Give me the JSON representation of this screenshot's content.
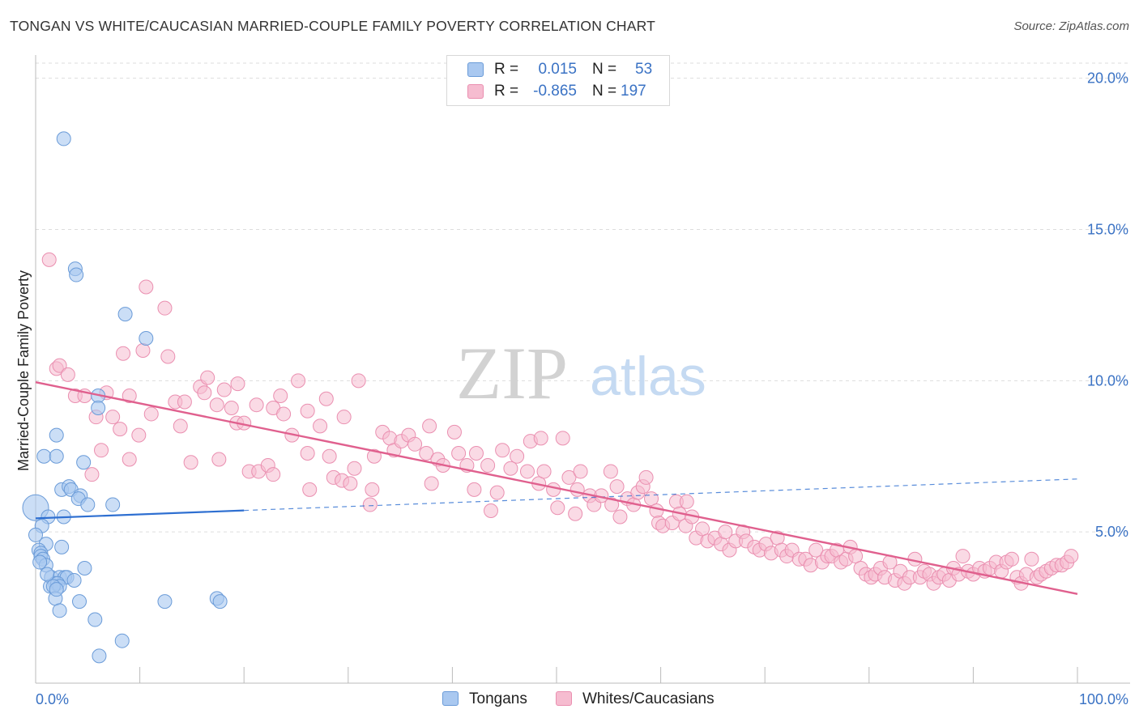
{
  "title": "TONGAN VS WHITE/CAUCASIAN MARRIED-COUPLE FAMILY POVERTY CORRELATION CHART",
  "source": "Source: ZipAtlas.com",
  "watermark": {
    "zip": "ZIP",
    "atlas": "atlas"
  },
  "legend": {
    "rows": [
      {
        "r_label": "R =",
        "r_value": "0.015",
        "n_label": "N =",
        "n_value": "53"
      },
      {
        "r_label": "R =",
        "r_value": "-0.865",
        "n_label": "N =",
        "n_value": "197"
      }
    ]
  },
  "bottom_legend": {
    "tongans": "Tongans",
    "whites": "Whites/Caucasians"
  },
  "colors": {
    "blue_fill": "#a9c8f0",
    "blue_stroke": "#6a9bd8",
    "blue_line": "#2e6fd1",
    "pink_fill": "#f6bcd0",
    "pink_stroke": "#ea8fb0",
    "pink_line": "#e0608e",
    "tick": "#3a72c4",
    "grid": "#dddddd"
  },
  "chart_data": {
    "type": "scatter",
    "title": "TONGAN VS WHITE/CAUCASIAN MARRIED-COUPLE FAMILY POVERTY CORRELATION CHART",
    "xlabel": "",
    "ylabel": "Married-Couple Family Poverty",
    "xlim": [
      0,
      100
    ],
    "ylim": [
      0,
      20.5
    ],
    "x_tick_labels": [
      "0.0%",
      "100.0%"
    ],
    "y_ticks": [
      5,
      10,
      15,
      20
    ],
    "y_tick_labels": [
      "5.0%",
      "10.0%",
      "15.0%",
      "20.0%"
    ],
    "series": [
      {
        "name": "Tongans",
        "r": 0.015,
        "n": 53,
        "trend": {
          "x0": 0,
          "y0": 5.45,
          "x1": 100,
          "y1": 6.75,
          "solid_until": 20
        },
        "points": [
          [
            2.7,
            18.0
          ],
          [
            3.8,
            13.7
          ],
          [
            3.9,
            13.5
          ],
          [
            8.6,
            12.2
          ],
          [
            10.6,
            11.4
          ],
          [
            6.0,
            9.5
          ],
          [
            6.0,
            9.1
          ],
          [
            2.0,
            8.2
          ],
          [
            0.8,
            7.5
          ],
          [
            2.0,
            7.5
          ],
          [
            4.6,
            7.3
          ],
          [
            2.5,
            6.4
          ],
          [
            3.2,
            6.5
          ],
          [
            3.4,
            6.4
          ],
          [
            4.3,
            6.2
          ],
          [
            4.1,
            6.1
          ],
          [
            5.0,
            5.9
          ],
          [
            7.4,
            5.9
          ],
          [
            0.0,
            5.8
          ],
          [
            1.2,
            5.5
          ],
          [
            2.7,
            5.5
          ],
          [
            0.6,
            5.2
          ],
          [
            0.0,
            4.9
          ],
          [
            1.0,
            4.6
          ],
          [
            2.5,
            4.5
          ],
          [
            0.3,
            4.4
          ],
          [
            0.5,
            4.3
          ],
          [
            0.5,
            4.2
          ],
          [
            0.7,
            4.1
          ],
          [
            1.0,
            3.9
          ],
          [
            4.7,
            3.8
          ],
          [
            1.5,
            3.5
          ],
          [
            2.3,
            3.5
          ],
          [
            2.8,
            3.5
          ],
          [
            3.0,
            3.5
          ],
          [
            1.9,
            3.3
          ],
          [
            1.4,
            3.2
          ],
          [
            2.1,
            3.3
          ],
          [
            2.3,
            3.2
          ],
          [
            1.7,
            3.2
          ],
          [
            1.9,
            2.8
          ],
          [
            4.2,
            2.7
          ],
          [
            12.4,
            2.7
          ],
          [
            17.4,
            2.8
          ],
          [
            17.7,
            2.7
          ],
          [
            2.3,
            2.4
          ],
          [
            5.7,
            2.1
          ],
          [
            8.3,
            1.4
          ],
          [
            6.1,
            0.9
          ],
          [
            3.7,
            3.4
          ],
          [
            1.1,
            3.6
          ],
          [
            0.4,
            4.0
          ],
          [
            2.0,
            3.1
          ]
        ]
      },
      {
        "name": "Whites/Caucasians",
        "r": -0.865,
        "n": 197,
        "trend": {
          "x0": 0,
          "y0": 9.95,
          "x1": 100,
          "y1": 2.95
        },
        "points": [
          [
            1.3,
            14.0
          ],
          [
            10.6,
            13.1
          ],
          [
            12.4,
            12.4
          ],
          [
            8.4,
            10.9
          ],
          [
            10.3,
            11.0
          ],
          [
            12.7,
            10.8
          ],
          [
            2.0,
            10.4
          ],
          [
            2.3,
            10.5
          ],
          [
            3.1,
            10.2
          ],
          [
            3.8,
            9.5
          ],
          [
            4.7,
            9.5
          ],
          [
            6.8,
            9.6
          ],
          [
            9.0,
            9.5
          ],
          [
            11.1,
            8.9
          ],
          [
            13.4,
            9.3
          ],
          [
            14.3,
            9.3
          ],
          [
            15.8,
            9.8
          ],
          [
            16.5,
            10.1
          ],
          [
            16.2,
            9.6
          ],
          [
            17.4,
            9.2
          ],
          [
            18.1,
            9.7
          ],
          [
            19.4,
            9.9
          ],
          [
            18.8,
            9.1
          ],
          [
            13.9,
            8.5
          ],
          [
            7.4,
            8.8
          ],
          [
            5.8,
            8.8
          ],
          [
            8.1,
            8.4
          ],
          [
            9.9,
            8.2
          ],
          [
            6.3,
            7.7
          ],
          [
            9.0,
            7.4
          ],
          [
            5.4,
            6.9
          ],
          [
            14.9,
            7.3
          ],
          [
            17.6,
            7.4
          ],
          [
            19.3,
            8.6
          ],
          [
            20.0,
            8.6
          ],
          [
            21.2,
            9.2
          ],
          [
            22.8,
            9.1
          ],
          [
            23.5,
            9.5
          ],
          [
            23.8,
            8.9
          ],
          [
            25.2,
            10.0
          ],
          [
            24.6,
            8.2
          ],
          [
            26.1,
            9.0
          ],
          [
            27.3,
            8.5
          ],
          [
            27.9,
            9.4
          ],
          [
            29.6,
            8.8
          ],
          [
            31.0,
            10.0
          ],
          [
            20.5,
            7.0
          ],
          [
            21.4,
            7.0
          ],
          [
            22.3,
            7.2
          ],
          [
            22.8,
            6.9
          ],
          [
            26.3,
            6.4
          ],
          [
            26.1,
            7.6
          ],
          [
            28.2,
            7.5
          ],
          [
            28.6,
            6.8
          ],
          [
            29.4,
            6.7
          ],
          [
            30.2,
            6.6
          ],
          [
            30.6,
            7.1
          ],
          [
            32.1,
            5.9
          ],
          [
            32.3,
            6.4
          ],
          [
            32.5,
            7.5
          ],
          [
            33.3,
            8.3
          ],
          [
            34.0,
            8.1
          ],
          [
            34.4,
            7.7
          ],
          [
            35.1,
            8.0
          ],
          [
            35.8,
            8.2
          ],
          [
            36.4,
            7.9
          ],
          [
            37.5,
            7.6
          ],
          [
            38.6,
            7.4
          ],
          [
            39.1,
            7.2
          ],
          [
            38.0,
            6.6
          ],
          [
            37.8,
            8.5
          ],
          [
            40.2,
            8.3
          ],
          [
            40.6,
            7.6
          ],
          [
            41.4,
            7.2
          ],
          [
            42.3,
            7.6
          ],
          [
            42.1,
            6.4
          ],
          [
            43.4,
            7.2
          ],
          [
            44.3,
            6.3
          ],
          [
            43.7,
            5.7
          ],
          [
            44.8,
            7.7
          ],
          [
            45.6,
            7.1
          ],
          [
            46.2,
            7.5
          ],
          [
            47.2,
            7.0
          ],
          [
            47.5,
            8.0
          ],
          [
            48.3,
            6.6
          ],
          [
            48.8,
            7.0
          ],
          [
            48.5,
            8.1
          ],
          [
            49.7,
            6.4
          ],
          [
            50.1,
            5.8
          ],
          [
            50.6,
            8.1
          ],
          [
            51.2,
            6.8
          ],
          [
            52.0,
            6.4
          ],
          [
            52.3,
            7.0
          ],
          [
            51.8,
            5.6
          ],
          [
            53.2,
            6.2
          ],
          [
            53.6,
            5.9
          ],
          [
            54.3,
            6.2
          ],
          [
            55.2,
            7.0
          ],
          [
            55.8,
            6.5
          ],
          [
            55.3,
            5.9
          ],
          [
            56.1,
            5.5
          ],
          [
            56.8,
            6.1
          ],
          [
            57.4,
            5.9
          ],
          [
            57.8,
            6.3
          ],
          [
            58.3,
            6.5
          ],
          [
            58.6,
            6.8
          ],
          [
            59.1,
            6.1
          ],
          [
            59.6,
            5.7
          ],
          [
            59.8,
            5.3
          ],
          [
            60.2,
            5.2
          ],
          [
            61.1,
            5.3
          ],
          [
            61.5,
            6.0
          ],
          [
            61.8,
            5.6
          ],
          [
            62.5,
            6.0
          ],
          [
            62.4,
            5.2
          ],
          [
            63.0,
            5.5
          ],
          [
            63.4,
            4.8
          ],
          [
            64.0,
            5.1
          ],
          [
            64.5,
            4.7
          ],
          [
            65.2,
            4.8
          ],
          [
            65.8,
            4.6
          ],
          [
            66.2,
            5.0
          ],
          [
            66.6,
            4.4
          ],
          [
            67.2,
            4.7
          ],
          [
            67.9,
            5.0
          ],
          [
            68.2,
            4.7
          ],
          [
            69.0,
            4.5
          ],
          [
            69.5,
            4.4
          ],
          [
            70.1,
            4.6
          ],
          [
            70.6,
            4.3
          ],
          [
            71.2,
            4.8
          ],
          [
            71.6,
            4.4
          ],
          [
            72.1,
            4.2
          ],
          [
            72.6,
            4.4
          ],
          [
            73.3,
            4.1
          ],
          [
            73.9,
            4.1
          ],
          [
            74.4,
            3.9
          ],
          [
            74.9,
            4.4
          ],
          [
            75.5,
            4.0
          ],
          [
            76.0,
            4.2
          ],
          [
            76.4,
            4.2
          ],
          [
            76.9,
            4.4
          ],
          [
            77.3,
            4.0
          ],
          [
            77.8,
            4.1
          ],
          [
            78.2,
            4.5
          ],
          [
            78.7,
            4.2
          ],
          [
            79.2,
            3.8
          ],
          [
            79.7,
            3.6
          ],
          [
            80.2,
            3.5
          ],
          [
            80.6,
            3.6
          ],
          [
            81.1,
            3.8
          ],
          [
            81.5,
            3.5
          ],
          [
            82.0,
            4.0
          ],
          [
            82.5,
            3.4
          ],
          [
            83.0,
            3.7
          ],
          [
            83.4,
            3.3
          ],
          [
            83.9,
            3.5
          ],
          [
            84.4,
            4.1
          ],
          [
            84.9,
            3.5
          ],
          [
            85.3,
            3.7
          ],
          [
            85.8,
            3.6
          ],
          [
            86.2,
            3.3
          ],
          [
            86.7,
            3.5
          ],
          [
            87.2,
            3.6
          ],
          [
            87.7,
            3.4
          ],
          [
            88.1,
            3.8
          ],
          [
            88.6,
            3.6
          ],
          [
            89.0,
            4.2
          ],
          [
            89.5,
            3.7
          ],
          [
            90.0,
            3.6
          ],
          [
            90.6,
            3.8
          ],
          [
            91.1,
            3.7
          ],
          [
            91.6,
            3.8
          ],
          [
            92.2,
            4.0
          ],
          [
            92.7,
            3.7
          ],
          [
            93.2,
            4.0
          ],
          [
            93.7,
            4.1
          ],
          [
            94.2,
            3.5
          ],
          [
            94.6,
            3.3
          ],
          [
            95.1,
            3.6
          ],
          [
            95.6,
            4.1
          ],
          [
            96.1,
            3.5
          ],
          [
            96.5,
            3.6
          ],
          [
            97.0,
            3.7
          ],
          [
            97.5,
            3.8
          ],
          [
            98.0,
            3.9
          ],
          [
            98.5,
            3.9
          ],
          [
            99.0,
            4.0
          ],
          [
            99.4,
            4.2
          ]
        ]
      }
    ]
  }
}
